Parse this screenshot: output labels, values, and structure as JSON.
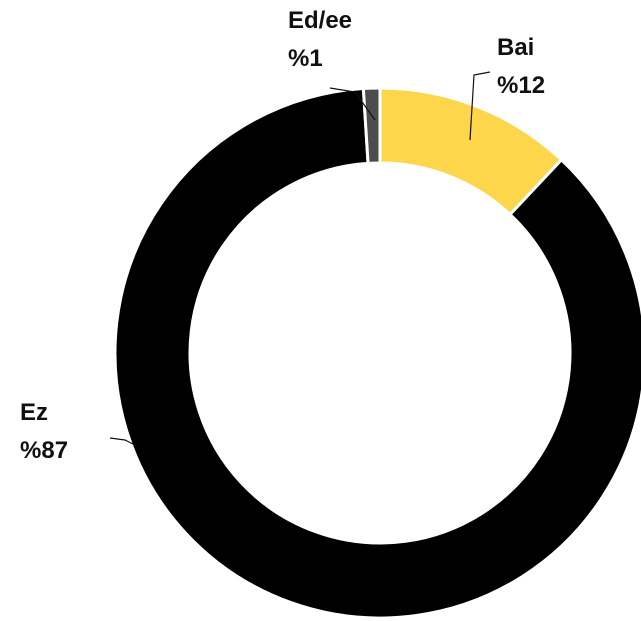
{
  "chart_data": {
    "type": "pie",
    "donut": true,
    "categories": [
      "Bai",
      "Ez",
      "Ed/ee"
    ],
    "values": [
      12,
      87,
      1
    ],
    "value_labels": [
      "%12",
      "%87",
      "%1"
    ],
    "colors": [
      "#fdd64b",
      "#000000",
      "#4d4d4d"
    ]
  }
}
